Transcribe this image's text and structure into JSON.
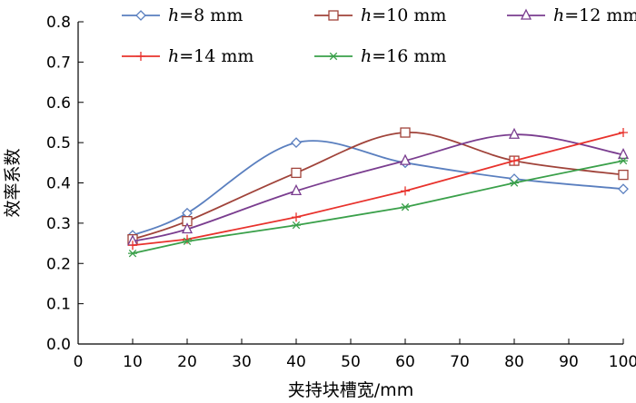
{
  "chart_data": {
    "type": "line",
    "title": "",
    "xlabel": "夹持块槽宽/mm",
    "ylabel": "效率系数",
    "xlim": [
      0,
      100
    ],
    "ylim": [
      0.0,
      0.8
    ],
    "xticks": [
      0,
      10,
      20,
      30,
      40,
      50,
      60,
      70,
      80,
      90,
      100
    ],
    "yticks": [
      0.0,
      0.1,
      0.2,
      0.3,
      0.4,
      0.5,
      0.6,
      0.7,
      0.8
    ],
    "x": [
      10,
      20,
      40,
      60,
      80,
      100
    ],
    "legend_position": "top",
    "series": [
      {
        "name": "h=8 mm",
        "var": "h",
        "rest": "=8 mm",
        "color": "#5a7fbf",
        "marker": "diamond",
        "curve": "smooth",
        "values": [
          0.27,
          0.325,
          0.5,
          0.45,
          0.41,
          0.385
        ]
      },
      {
        "name": "h=10 mm",
        "var": "h",
        "rest": "=10 mm",
        "color": "#a0433a",
        "marker": "square",
        "curve": "smooth",
        "values": [
          0.26,
          0.305,
          0.425,
          0.525,
          0.455,
          0.42
        ]
      },
      {
        "name": "h=12 mm",
        "var": "h",
        "rest": "=12 mm",
        "color": "#7a3d8f",
        "marker": "triangle",
        "curve": "smooth",
        "values": [
          0.255,
          0.285,
          0.38,
          0.455,
          0.52,
          0.47
        ]
      },
      {
        "name": "h=14 mm",
        "var": "h",
        "rest": "=14 mm",
        "color": "#e8322c",
        "marker": "plus",
        "curve": "straight",
        "values": [
          0.245,
          0.26,
          0.315,
          0.38,
          0.455,
          0.525
        ]
      },
      {
        "name": "h=16 mm",
        "var": "h",
        "rest": "=16 mm",
        "color": "#3aa04a",
        "marker": "asterisk",
        "curve": "straight",
        "values": [
          0.225,
          0.255,
          0.295,
          0.34,
          0.4,
          0.455
        ]
      }
    ]
  }
}
